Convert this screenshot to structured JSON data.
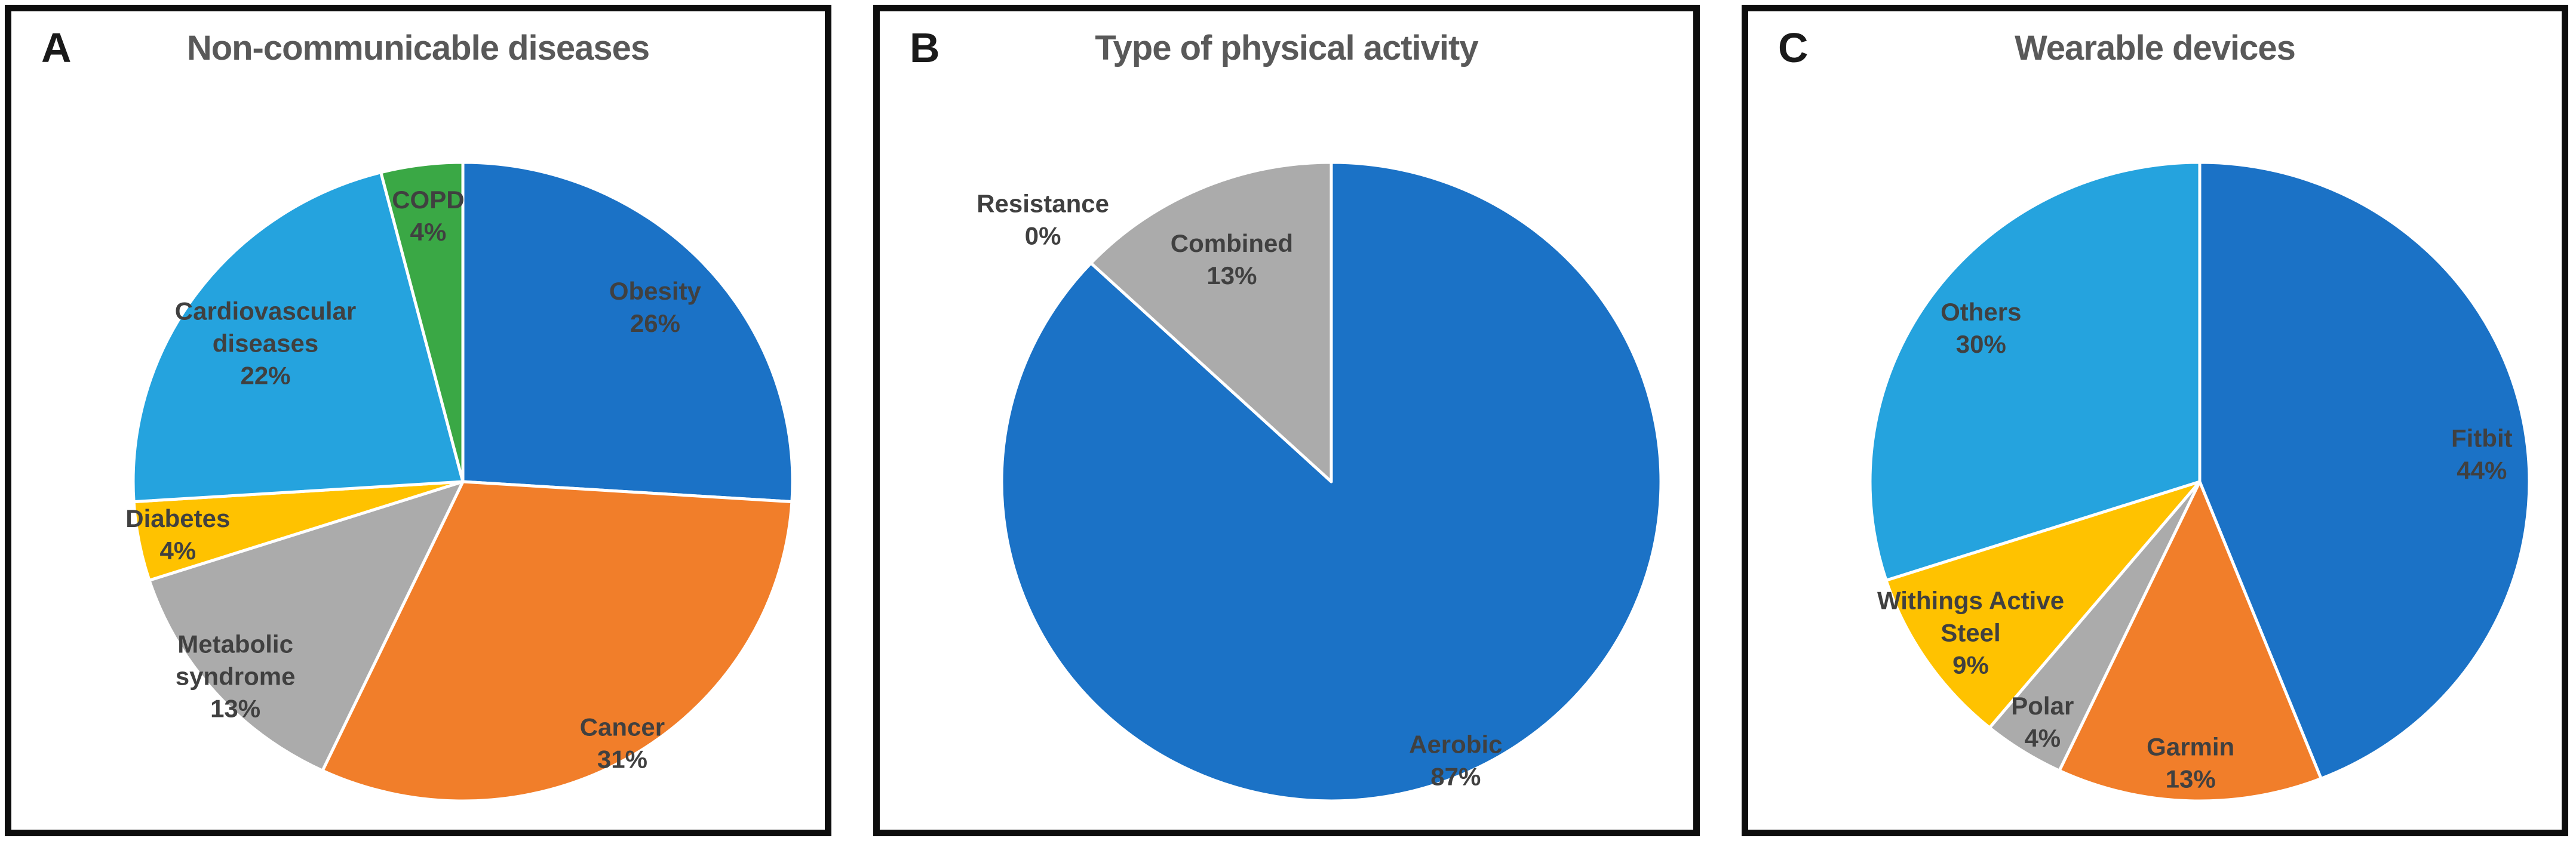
{
  "figure_title": "",
  "style_colors": {
    "slice_label": "#404040",
    "panel_title": "#595959",
    "panel_letter": "#1a1a1a",
    "slice_stroke": "#ffffff",
    "panel_border": "#0d0d0d"
  },
  "chart_data": [
    {
      "type": "pie",
      "panel_letter": "A",
      "title": "Non-communicable diseases",
      "unit": "%",
      "legend": "none",
      "start_angle_deg": 0,
      "direction": "clockwise",
      "series": [
        {
          "label": "Obesity",
          "value": 26,
          "color": "#1b72c6",
          "label_r": 0.8
        },
        {
          "label": "Cancer",
          "value": 31,
          "color": "#f17e2a",
          "label_r": 0.95
        },
        {
          "label": "Metabolic syndrome",
          "value": 13,
          "color": "#ababab",
          "label_r": 0.92
        },
        {
          "label": "Diabetes",
          "value": 4,
          "color": "#ffc200",
          "label_r": 0.88
        },
        {
          "label": "Cardiovascular diseases",
          "value": 22,
          "color": "#25a3de",
          "label_r": 0.74
        },
        {
          "label": "COPD",
          "value": 4,
          "color": "#3aa845",
          "label_r": 0.84
        }
      ]
    },
    {
      "type": "pie",
      "panel_letter": "B",
      "title": "Type of physical activity",
      "unit": "%",
      "legend": "none",
      "start_angle_deg": 0,
      "direction": "clockwise",
      "series": [
        {
          "label": "Aerobic",
          "value": 87,
          "color": "#1b72c6",
          "label_r": 0.95
        },
        {
          "label": "Resistance",
          "value": 0,
          "label_r": 1.2,
          "outside": true
        },
        {
          "label": "Combined",
          "value": 13,
          "color": "#ababab",
          "label_r": 0.76
        }
      ]
    },
    {
      "type": "pie",
      "panel_letter": "C",
      "title": "Wearable devices",
      "unit": "%",
      "legend": "none",
      "start_angle_deg": 0,
      "direction": "clockwise",
      "series": [
        {
          "label": "Fitbit",
          "value": 44,
          "color": "#1b72c6",
          "label_r": 0.86,
          "label_da": 5
        },
        {
          "label": "Garmin",
          "value": 13,
          "color": "#f17e2a",
          "label_r": 0.88
        },
        {
          "label": "Polar",
          "value": 4,
          "color": "#ababab",
          "label_r": 0.89
        },
        {
          "label": "Withings Active Steel",
          "value": 9,
          "color": "#ffc200",
          "label_r": 0.84
        },
        {
          "label": "Others",
          "value": 30,
          "color": "#25a3de",
          "label_r": 0.82
        }
      ]
    }
  ]
}
